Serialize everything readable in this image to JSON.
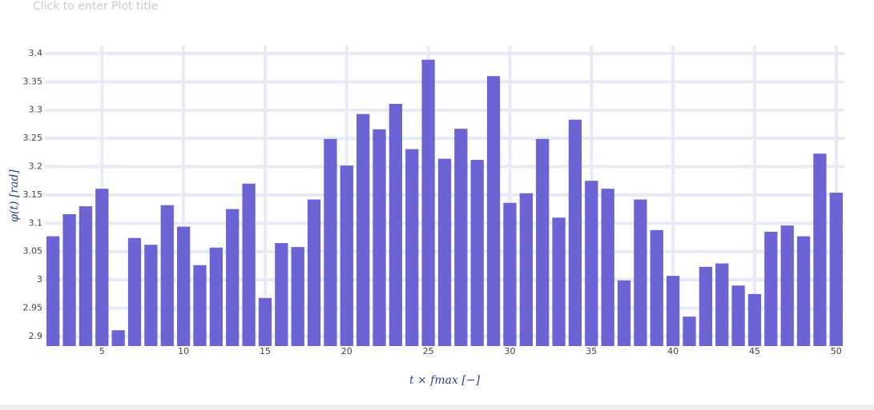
{
  "chart_data": {
    "type": "bar",
    "title": "Click to enter Plot title",
    "x_label": "t × fmax [−]",
    "y_label": "φ(t) [rad]",
    "x": [
      2,
      3,
      4,
      5,
      6,
      7,
      8,
      9,
      10,
      11,
      12,
      13,
      14,
      15,
      16,
      17,
      18,
      19,
      20,
      21,
      22,
      23,
      24,
      25,
      26,
      27,
      28,
      29,
      30,
      31,
      32,
      33,
      34,
      35,
      36,
      37,
      38,
      39,
      40,
      41,
      42,
      43,
      44,
      45,
      46,
      47,
      48,
      49,
      50
    ],
    "values": [
      3.077,
      3.116,
      3.13,
      3.161,
      2.911,
      3.074,
      3.062,
      3.132,
      3.094,
      3.026,
      3.057,
      3.125,
      3.17,
      2.968,
      3.065,
      3.058,
      3.142,
      3.249,
      3.202,
      3.293,
      3.266,
      3.311,
      3.231,
      3.389,
      3.214,
      3.267,
      3.212,
      3.36,
      3.136,
      3.153,
      3.249,
      3.11,
      3.283,
      3.175,
      3.161,
      2.999,
      3.142,
      3.088,
      3.007,
      2.935,
      3.023,
      3.029,
      2.99,
      2.975,
      3.085,
      3.096,
      3.077,
      3.223,
      3.154
    ],
    "color": "#6c63d4",
    "xlim": [
      1.5,
      50.5
    ],
    "ylim": [
      2.883,
      3.414
    ],
    "xticks": [
      5,
      10,
      15,
      20,
      25,
      30,
      35,
      40,
      45,
      50
    ],
    "yticks": [
      2.9,
      2.95,
      3,
      3.05,
      3.1,
      3.15,
      3.2,
      3.25,
      3.3,
      3.35,
      3.4
    ],
    "grid": true
  }
}
